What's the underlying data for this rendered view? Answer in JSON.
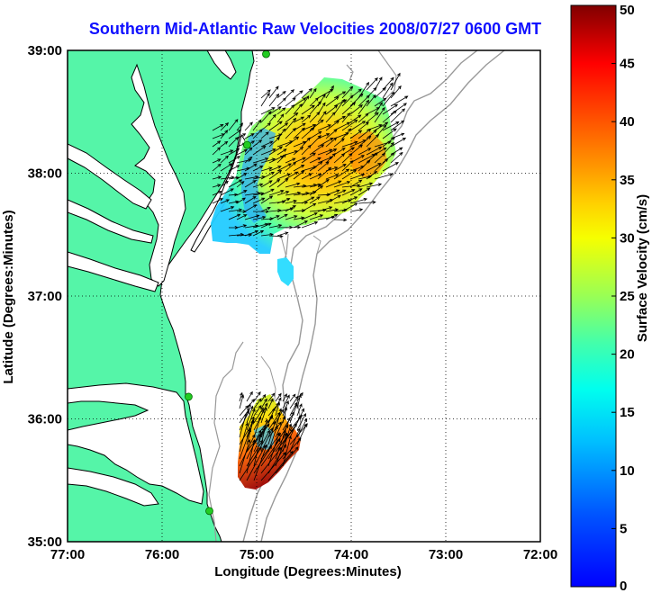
{
  "title": "Southern Mid-Atlantic Raw Velocities 2008/07/27 0600 GMT",
  "map": {
    "xlabel": "Longitude (Degrees:Minutes)",
    "ylabel": "Latitude (Degrees:Minutes)",
    "x_ticks": [
      "77:00",
      "76:00",
      "75:00",
      "74:00",
      "73:00",
      "72:00"
    ],
    "x_tick_values": [
      -77,
      -76,
      -75,
      -74,
      -73,
      -72
    ],
    "y_ticks": [
      "39:00",
      "38:00",
      "37:00",
      "36:00",
      "35:00"
    ],
    "y_tick_values": [
      39,
      38,
      37,
      36,
      35
    ],
    "xlim": [
      -77,
      -72
    ],
    "ylim": [
      35,
      39
    ],
    "grid": "dotted",
    "land_color": "#55f5a8",
    "water_color": "#ffffff",
    "bathymetry_color": "#999999",
    "vector_color": "#000000",
    "station_marker_color": "#22cc22"
  },
  "colorbar": {
    "label": "Surface Velocity (cm/s)",
    "ticks": [
      "0",
      "5",
      "10",
      "15",
      "20",
      "25",
      "30",
      "35",
      "40",
      "45",
      "50"
    ],
    "range": [
      0,
      50
    ],
    "colormap": "jet"
  },
  "chart_data": {
    "type": "heatmap",
    "title": "Southern Mid-Atlantic Raw Velocities 2008/07/27 0600 GMT",
    "xlabel": "Longitude (Degrees:Minutes)",
    "ylabel": "Latitude (Degrees:Minutes)",
    "xlim": [
      -77,
      -72
    ],
    "ylim": [
      35,
      39
    ],
    "colorbar_label": "Surface Velocity (cm/s)",
    "colorbar_range": [
      0,
      50
    ],
    "stations": [
      {
        "lon": -74.9,
        "lat": 38.97
      },
      {
        "lon": -75.1,
        "lat": 38.23
      },
      {
        "lon": -75.72,
        "lat": 36.18
      },
      {
        "lon": -75.5,
        "lat": 35.25
      }
    ]
  }
}
